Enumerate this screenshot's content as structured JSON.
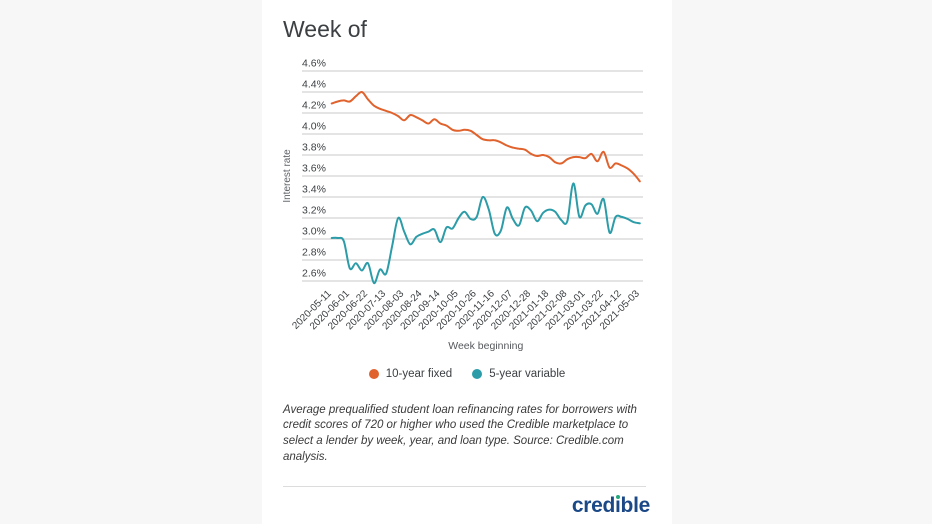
{
  "header": {
    "title": "Week of"
  },
  "chart_data": {
    "type": "line",
    "title": "Week of",
    "xlabel": "Week beginning",
    "ylabel": "Interest rate",
    "ylim": [
      2.6,
      4.6
    ],
    "ytick_step": 0.2,
    "ytick_suffix": "%",
    "grid": true,
    "legend_position": "bottom",
    "x_label_every": 3,
    "x": [
      "2020-05-11",
      "2020-05-18",
      "2020-05-25",
      "2020-06-01",
      "2020-06-08",
      "2020-06-15",
      "2020-06-22",
      "2020-06-29",
      "2020-07-06",
      "2020-07-13",
      "2020-07-20",
      "2020-07-27",
      "2020-08-03",
      "2020-08-10",
      "2020-08-17",
      "2020-08-24",
      "2020-08-31",
      "2020-09-07",
      "2020-09-14",
      "2020-09-21",
      "2020-09-28",
      "2020-10-05",
      "2020-10-12",
      "2020-10-19",
      "2020-10-26",
      "2020-11-02",
      "2020-11-09",
      "2020-11-16",
      "2020-11-23",
      "2020-11-30",
      "2020-12-07",
      "2020-12-14",
      "2020-12-21",
      "2020-12-28",
      "2021-01-04",
      "2021-01-11",
      "2021-01-18",
      "2021-01-25",
      "2021-02-01",
      "2021-02-08",
      "2021-02-15",
      "2021-02-22",
      "2021-03-01",
      "2021-03-08",
      "2021-03-15",
      "2021-03-22",
      "2021-03-29",
      "2021-04-05",
      "2021-04-12",
      "2021-04-19",
      "2021-04-26",
      "2021-05-03"
    ],
    "series": [
      {
        "name": "10-year fixed",
        "color": "#e0622d",
        "values": [
          4.29,
          4.31,
          4.32,
          4.31,
          4.36,
          4.4,
          4.33,
          4.27,
          4.24,
          4.22,
          4.2,
          4.17,
          4.13,
          4.18,
          4.16,
          4.13,
          4.1,
          4.14,
          4.1,
          4.08,
          4.04,
          4.03,
          4.04,
          4.03,
          3.99,
          3.95,
          3.94,
          3.94,
          3.92,
          3.89,
          3.87,
          3.86,
          3.85,
          3.81,
          3.79,
          3.8,
          3.78,
          3.73,
          3.72,
          3.76,
          3.78,
          3.78,
          3.77,
          3.81,
          3.74,
          3.83,
          3.68,
          3.72,
          3.7,
          3.67,
          3.62,
          3.55
        ]
      },
      {
        "name": "5-year variable",
        "color": "#2b9ca8",
        "values": [
          3.01,
          3.01,
          2.98,
          2.72,
          2.77,
          2.7,
          2.77,
          2.58,
          2.71,
          2.67,
          2.93,
          3.2,
          3.07,
          2.95,
          3.02,
          3.05,
          3.07,
          3.09,
          2.97,
          3.11,
          3.1,
          3.2,
          3.26,
          3.19,
          3.21,
          3.4,
          3.28,
          3.05,
          3.08,
          3.3,
          3.19,
          3.13,
          3.3,
          3.27,
          3.17,
          3.25,
          3.28,
          3.26,
          3.18,
          3.17,
          3.53,
          3.21,
          3.32,
          3.33,
          3.24,
          3.38,
          3.06,
          3.21,
          3.21,
          3.19,
          3.16,
          3.15
        ]
      }
    ]
  },
  "footnote": {
    "text": "Average prequalified student loan refinancing rates for borrowers with credit scores of 720 or higher who used the Credible marketplace to select a lender by week, year, and loan type. Source: Credible.com analysis."
  },
  "branding": {
    "logo_text": "credible",
    "logo_pre": "cred",
    "logo_dotless_i": "ı",
    "logo_post": "ble",
    "logo_color": "#1b4887",
    "logo_dot_color": "#25a87d"
  }
}
